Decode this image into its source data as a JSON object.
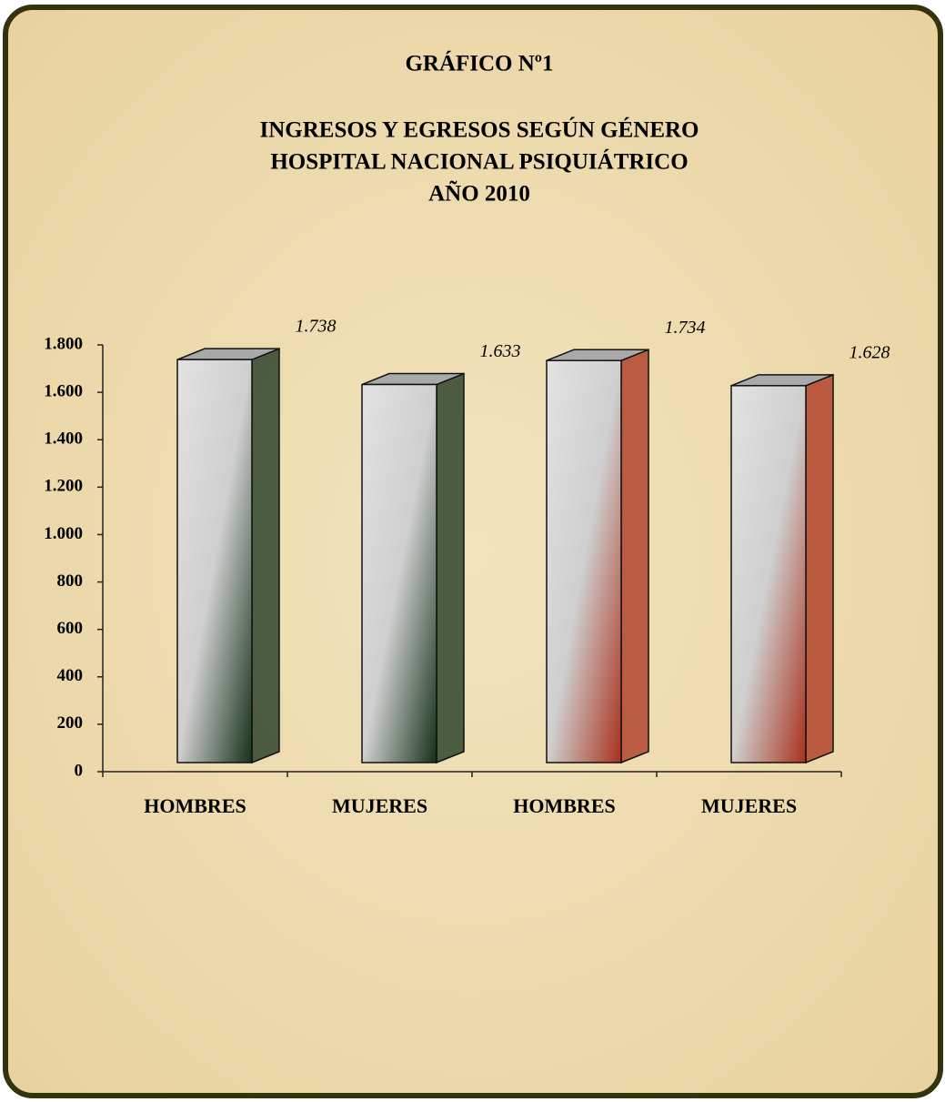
{
  "chart_data": {
    "type": "bar3d",
    "title": "GRÁFICO Nº1",
    "subtitle": [
      "INGRESOS Y EGRESOS SEGÚN GÉNERO",
      "HOSPITAL NACIONAL PSIQUIÁTRICO",
      "AÑO 2010"
    ],
    "categories": [
      "HOMBRES",
      "MUJERES",
      "HOMBRES",
      "MUJERES"
    ],
    "values": [
      1738,
      1633,
      1734,
      1628
    ],
    "value_labels": [
      "1.738",
      "1.633",
      "1.734",
      "1.628"
    ],
    "colors": [
      "#15301a",
      "#15301a",
      "#a8301c",
      "#a8301c"
    ],
    "ylim": [
      0,
      1800
    ],
    "yticks": [
      0,
      200,
      400,
      600,
      800,
      {
        "value": 1000,
        "label": "1.000"
      },
      {
        "value": 1200,
        "label": "1.200"
      },
      {
        "value": 1400,
        "label": "1.400"
      },
      {
        "value": 1600,
        "label": "1.600"
      },
      {
        "value": 1800,
        "label": "1.800"
      }
    ]
  }
}
